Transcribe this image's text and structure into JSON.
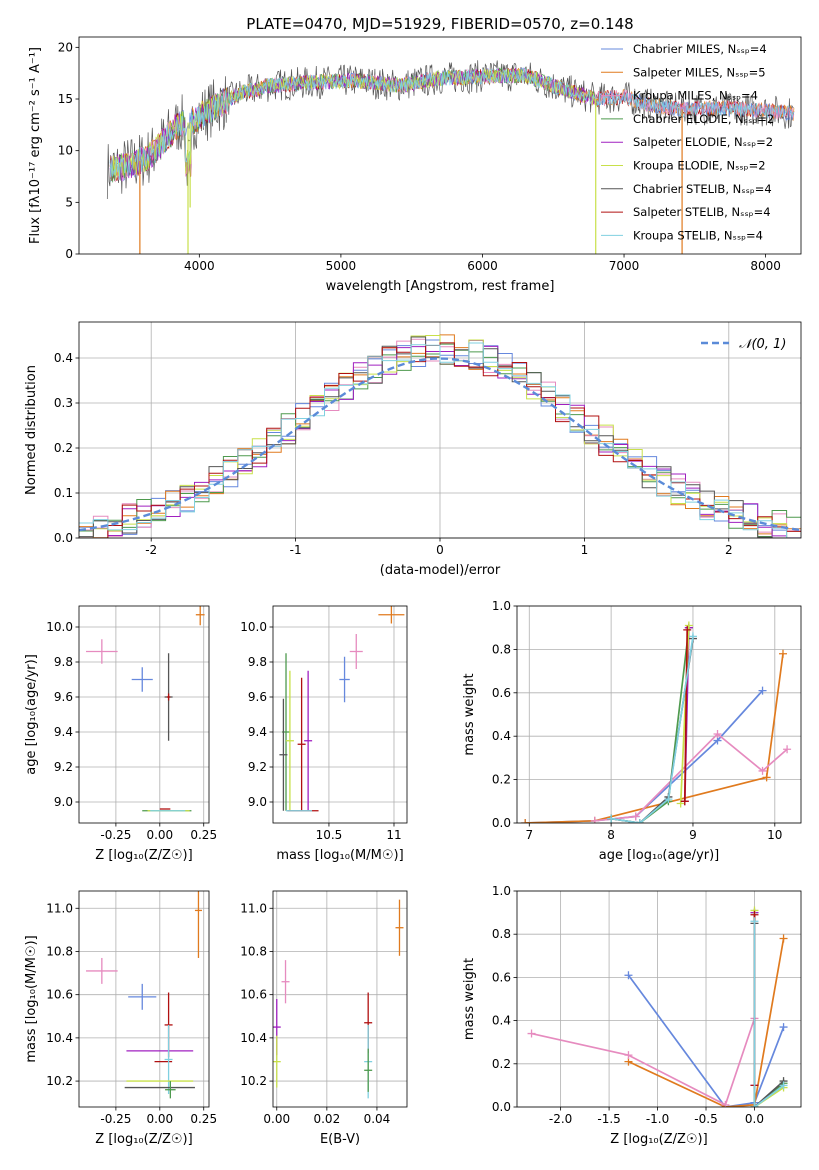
{
  "figure": {
    "title": "PLATE=0470, MJD=51929, FIBERID=0570, z=0.148"
  },
  "chart_data": [
    {
      "id": "spectrum",
      "type": "line",
      "xlabel": "wavelength [Angstrom, rest frame]",
      "ylabel": "Flux [fλ10⁻¹⁷ erg cm⁻² s⁻¹ A⁻¹]",
      "xlim": [
        3150,
        8250
      ],
      "ylim": [
        0,
        21
      ],
      "xticks": [
        4000,
        5000,
        6000,
        7000,
        8000
      ],
      "yticks": [
        0,
        5,
        10,
        15,
        20
      ],
      "grid": false,
      "legend_position": "top-right",
      "series": [
        {
          "name": "Chabrier MILES, Nₛₛₚ=4",
          "color": "#6688dd"
        },
        {
          "name": "Salpeter MILES, Nₛₛₚ=5",
          "color": "#e07a1e"
        },
        {
          "name": "Kroupa MILES, Nₛₛₚ=4",
          "color": "#e68bbf"
        },
        {
          "name": "Chabrier ELODIE, Nₛₛₚ=2",
          "color": "#4e9a4e"
        },
        {
          "name": "Salpeter ELODIE, Nₛₛₚ=2",
          "color": "#a020c0"
        },
        {
          "name": "Kroupa ELODIE, Nₛₛₚ=2",
          "color": "#c8e04a"
        },
        {
          "name": "Chabrier STELIB, Nₛₛₚ=4",
          "color": "#555555"
        },
        {
          "name": "Salpeter STELIB, Nₛₛₚ=4",
          "color": "#b01010"
        },
        {
          "name": "Kroupa STELIB, Nₛₛₚ=4",
          "color": "#80d0e0"
        }
      ],
      "envelope": {
        "x": [
          3350,
          3450,
          3550,
          3650,
          3750,
          3850,
          3950,
          4100,
          4300,
          4500,
          4800,
          5100,
          5400,
          5700,
          6000,
          6300,
          6600,
          6800,
          7000,
          7200,
          7400,
          7700,
          8000,
          8200
        ],
        "y": [
          8.2,
          8.4,
          8.8,
          9.5,
          11.0,
          12.5,
          12.8,
          14.2,
          15.6,
          16.3,
          16.6,
          16.8,
          16.3,
          17.0,
          17.2,
          17.3,
          15.8,
          15.0,
          15.2,
          14.4,
          14.0,
          14.1,
          13.9,
          13.6
        ]
      },
      "dips": [
        {
          "x": 3580,
          "y": 0
        },
        {
          "x": 3920,
          "y": 0
        },
        {
          "x": 3935,
          "y": 4.5
        },
        {
          "x": 6800,
          "y": 0
        },
        {
          "x": 7410,
          "y": 0
        }
      ]
    },
    {
      "id": "residuals",
      "type": "histogram",
      "xlabel": "(data-model)/error",
      "ylabel": "Normed distribution",
      "xlim": [
        -2.5,
        2.5
      ],
      "ylim": [
        0,
        0.48
      ],
      "xticks": [
        -2,
        -1,
        0,
        1,
        2
      ],
      "yticks": [
        0.0,
        0.1,
        0.2,
        0.3,
        0.4
      ],
      "grid": true,
      "legend_position": "top-right",
      "legend": "𝒩(0, 1)",
      "normal_curve": {
        "mean": 0,
        "sigma": 1,
        "color": "#5b8bd8"
      },
      "bin_width": 0.1,
      "bins_start": -2.5
    },
    {
      "id": "age-vs-Z",
      "type": "scatter",
      "xlabel": "Z [log₁₀(Z/Z☉)]",
      "ylabel": "age  [log₁₀(age/yr)]",
      "xlim": [
        -0.46,
        0.28
      ],
      "ylim": [
        8.88,
        10.12
      ],
      "xticks": [
        -0.25,
        0.0,
        0.25
      ],
      "yticks": [
        9.0,
        9.2,
        9.4,
        9.6,
        9.8,
        10.0
      ],
      "grid": true,
      "points": [
        {
          "x": 0.23,
          "y": 10.07,
          "xerr": 0.025,
          "yerr": 0.06,
          "color": "#e07a1e"
        },
        {
          "x": -0.33,
          "y": 9.86,
          "xerr": 0.09,
          "yerr": 0.07,
          "color": "#e68bbf"
        },
        {
          "x": -0.1,
          "y": 9.7,
          "xerr": 0.06,
          "yerr": 0.07,
          "color": "#6688dd"
        },
        {
          "x": 0.04,
          "y": 8.95,
          "xerr": 0.14,
          "yerr": 0.0,
          "color": "#4e9a4e"
        },
        {
          "x": 0.05,
          "y": 8.95,
          "xerr": 0.12,
          "yerr": 0.0,
          "color": "#c8e04a"
        },
        {
          "x": 0.045,
          "y": 8.95,
          "xerr": 0.1,
          "yerr": 0.0,
          "color": "#80d0e0"
        },
        {
          "x": 0.05,
          "y": 9.6,
          "xerr": 0.0,
          "yerr": 0.25,
          "color": "#555555"
        },
        {
          "x": 0.05,
          "y": 9.6,
          "xerr": 0.01,
          "yerr": 0.02,
          "color": "#b01010"
        },
        {
          "x": 0.03,
          "y": 8.96,
          "xerr": 0.03,
          "yerr": 0.0,
          "color": "#b01010"
        }
      ]
    },
    {
      "id": "age-vs-mass",
      "type": "scatter",
      "xlabel": "mass [log₁₀(M/M☉)]",
      "ylabel": "",
      "xlim": [
        10.07,
        11.1
      ],
      "ylim": [
        8.88,
        10.12
      ],
      "xticks": [
        10.0,
        10.5,
        11.0
      ],
      "yticks": [
        9.0,
        9.2,
        9.4,
        9.6,
        9.8,
        10.0
      ],
      "grid": true,
      "points": [
        {
          "x": 10.98,
          "y": 10.07,
          "xerr": 0.1,
          "yerr": 0.05,
          "color": "#e07a1e"
        },
        {
          "x": 10.71,
          "y": 9.86,
          "xerr": 0.05,
          "yerr": 0.1,
          "color": "#e68bbf"
        },
        {
          "x": 10.62,
          "y": 9.7,
          "xerr": 0.04,
          "yerr": 0.13,
          "color": "#6688dd"
        },
        {
          "x": 10.17,
          "y": 9.4,
          "xerr": 0.0,
          "yerr": 0.45,
          "color": "#4e9a4e"
        },
        {
          "x": 10.2,
          "y": 9.35,
          "xerr": 0.0,
          "yerr": 0.4,
          "color": "#c8e04a"
        },
        {
          "x": 10.15,
          "y": 9.27,
          "xerr": 0.0,
          "yerr": 0.32,
          "color": "#555555"
        },
        {
          "x": 10.29,
          "y": 9.33,
          "xerr": 0.0,
          "yerr": 0.38,
          "color": "#b01010"
        },
        {
          "x": 10.34,
          "y": 9.35,
          "xerr": 0.0,
          "yerr": 0.4,
          "color": "#a020c0"
        },
        {
          "x": 10.3,
          "y": 8.95,
          "xerr": 0.12,
          "yerr": 0.0,
          "color": "#b01010"
        },
        {
          "x": 10.27,
          "y": 8.95,
          "xerr": 0.1,
          "yerr": 0.0,
          "color": "#80d0e0"
        }
      ]
    },
    {
      "id": "mass-weight-vs-age",
      "type": "line",
      "xlabel": "age  [log₁₀(age/yr)]",
      "ylabel": "mass weight",
      "xlim": [
        6.85,
        10.32
      ],
      "ylim": [
        0,
        1.0
      ],
      "xticks": [
        7,
        8,
        9,
        10
      ],
      "yticks": [
        0.0,
        0.2,
        0.4,
        0.6,
        0.8,
        1.0
      ],
      "grid": true,
      "series": [
        {
          "color": "#6688dd",
          "x": [
            6.95,
            7.8,
            8.3,
            9.3,
            9.85
          ],
          "y": [
            0.0,
            0.01,
            0.03,
            0.38,
            0.61
          ]
        },
        {
          "color": "#e07a1e",
          "x": [
            6.95,
            7.8,
            9.9,
            10.1
          ],
          "y": [
            0.0,
            0.01,
            0.21,
            0.78
          ]
        },
        {
          "color": "#e68bbf",
          "x": [
            7.8,
            8.3,
            9.3,
            9.85,
            10.15
          ],
          "y": [
            0.01,
            0.03,
            0.41,
            0.24,
            0.34
          ]
        },
        {
          "color": "#4e9a4e",
          "x": [
            8.0,
            8.35,
            8.7,
            8.95
          ],
          "y": [
            0.02,
            0.0,
            0.1,
            0.9
          ]
        },
        {
          "color": "#a020c0",
          "x": [
            8.9,
            8.95
          ],
          "y": [
            0.1,
            0.9
          ]
        },
        {
          "color": "#c8e04a",
          "x": [
            8.85,
            8.95
          ],
          "y": [
            0.09,
            0.91
          ]
        },
        {
          "color": "#555555",
          "x": [
            8.0,
            8.35,
            8.7,
            9.0
          ],
          "y": [
            0.02,
            0.0,
            0.12,
            0.85
          ]
        },
        {
          "color": "#b01010",
          "x": [
            8.9,
            8.93
          ],
          "y": [
            0.1,
            0.89
          ]
        },
        {
          "color": "#80d0e0",
          "x": [
            8.0,
            8.35,
            8.7,
            9.0
          ],
          "y": [
            0.02,
            0.0,
            0.11,
            0.86
          ]
        }
      ]
    },
    {
      "id": "mass-vs-Z",
      "type": "scatter",
      "xlabel": "Z [log₁₀(Z/Z☉)]",
      "ylabel": "mass [log₁₀(M/M☉)]",
      "xlim": [
        -0.46,
        0.28
      ],
      "ylim": [
        10.08,
        11.08
      ],
      "xticks": [
        -0.25,
        0.0,
        0.25
      ],
      "yticks": [
        10.2,
        10.4,
        10.6,
        10.8,
        11.0
      ],
      "grid": true,
      "points": [
        {
          "x": 0.22,
          "y": 10.99,
          "xerr": 0.02,
          "yerr": 0.22,
          "color": "#e07a1e"
        },
        {
          "x": -0.33,
          "y": 10.71,
          "xerr": 0.09,
          "yerr": 0.06,
          "color": "#e68bbf"
        },
        {
          "x": -0.1,
          "y": 10.59,
          "xerr": 0.08,
          "yerr": 0.06,
          "color": "#6688dd"
        },
        {
          "x": 0.05,
          "y": 10.46,
          "xerr": 0.0,
          "yerr": 0.15,
          "color": "#b01010"
        },
        {
          "x": 0.0,
          "y": 10.34,
          "xerr": 0.19,
          "yerr": 0.0,
          "color": "#a020c0"
        },
        {
          "x": 0.02,
          "y": 10.29,
          "xerr": 0.05,
          "yerr": 0.0,
          "color": "#b01010"
        },
        {
          "x": 0.05,
          "y": 10.3,
          "xerr": 0.0,
          "yerr": 0.16,
          "color": "#80d0e0"
        },
        {
          "x": 0.0,
          "y": 10.2,
          "xerr": 0.19,
          "yerr": 0.0,
          "color": "#c8e04a"
        },
        {
          "x": 0.0,
          "y": 10.17,
          "xerr": 0.2,
          "yerr": 0.0,
          "color": "#555555"
        },
        {
          "x": 0.06,
          "y": 10.16,
          "xerr": 0.03,
          "yerr": 0.04,
          "color": "#4e9a4e"
        }
      ]
    },
    {
      "id": "mass-vs-ebv",
      "type": "scatter",
      "xlabel": "E(B-V)",
      "ylabel": "",
      "xlim": [
        -0.0015,
        0.052
      ],
      "ylim": [
        10.08,
        11.08
      ],
      "xticks": [
        0.0,
        0.02,
        0.04
      ],
      "yticks": [
        10.2,
        10.4,
        10.6,
        10.8,
        11.0
      ],
      "grid": true,
      "points": [
        {
          "x": 0.049,
          "y": 10.91,
          "xerr": 0.0,
          "yerr": 0.13,
          "color": "#e07a1e"
        },
        {
          "x": 0.0035,
          "y": 10.66,
          "xerr": 0.0,
          "yerr": 0.1,
          "color": "#e68bbf"
        },
        {
          "x": 0.0,
          "y": 10.45,
          "xerr": 0.0,
          "yerr": 0.13,
          "color": "#a020c0"
        },
        {
          "x": 0.0,
          "y": 10.29,
          "xerr": 0.0,
          "yerr": 0.12,
          "color": "#c8e04a"
        },
        {
          "x": 0.0365,
          "y": 10.47,
          "xerr": 0.0,
          "yerr": 0.14,
          "color": "#b01010"
        },
        {
          "x": 0.0365,
          "y": 10.29,
          "xerr": 0.0,
          "yerr": 0.17,
          "color": "#80d0e0"
        },
        {
          "x": 0.0365,
          "y": 10.25,
          "xerr": 0.0,
          "yerr": 0.1,
          "color": "#4e9a4e"
        }
      ]
    },
    {
      "id": "mass-weight-vs-Z",
      "type": "line",
      "xlabel": "Z [log₁₀(Z/Z☉)]",
      "ylabel": "mass weight",
      "xlim": [
        -2.45,
        0.48
      ],
      "ylim": [
        0,
        1.0
      ],
      "xticks": [
        -2.0,
        -1.5,
        -1.0,
        -0.5,
        0.0
      ],
      "yticks": [
        0.0,
        0.2,
        0.4,
        0.6,
        0.8,
        1.0
      ],
      "grid": true,
      "series": [
        {
          "color": "#6688dd",
          "x": [
            -1.3,
            -0.3,
            0.0,
            0.3
          ],
          "y": [
            0.61,
            0.0,
            0.02,
            0.37
          ]
        },
        {
          "color": "#e07a1e",
          "x": [
            -1.3,
            -0.3,
            0.0,
            0.3
          ],
          "y": [
            0.21,
            0.0,
            0.01,
            0.78
          ]
        },
        {
          "color": "#e68bbf",
          "x": [
            -2.3,
            -1.3,
            -0.3,
            0.0
          ],
          "y": [
            0.34,
            0.24,
            0.01,
            0.41
          ]
        },
        {
          "color": "#4e9a4e",
          "x": [
            0.0,
            0.0,
            0.3
          ],
          "y": [
            0.9,
            0.0,
            0.11
          ]
        },
        {
          "color": "#a020c0",
          "x": [
            0.0,
            0.0
          ],
          "y": [
            0.1,
            0.9
          ]
        },
        {
          "color": "#c8e04a",
          "x": [
            0.0,
            0.0,
            0.3
          ],
          "y": [
            0.91,
            0.0,
            0.09
          ]
        },
        {
          "color": "#555555",
          "x": [
            0.0,
            0.0,
            0.3
          ],
          "y": [
            0.85,
            0.0,
            0.12
          ]
        },
        {
          "color": "#b01010",
          "x": [
            0.0,
            0.0
          ],
          "y": [
            0.1,
            0.89
          ]
        },
        {
          "color": "#80d0e0",
          "x": [
            0.0,
            0.0,
            0.3
          ],
          "y": [
            0.86,
            0.0,
            0.1
          ]
        }
      ]
    }
  ]
}
